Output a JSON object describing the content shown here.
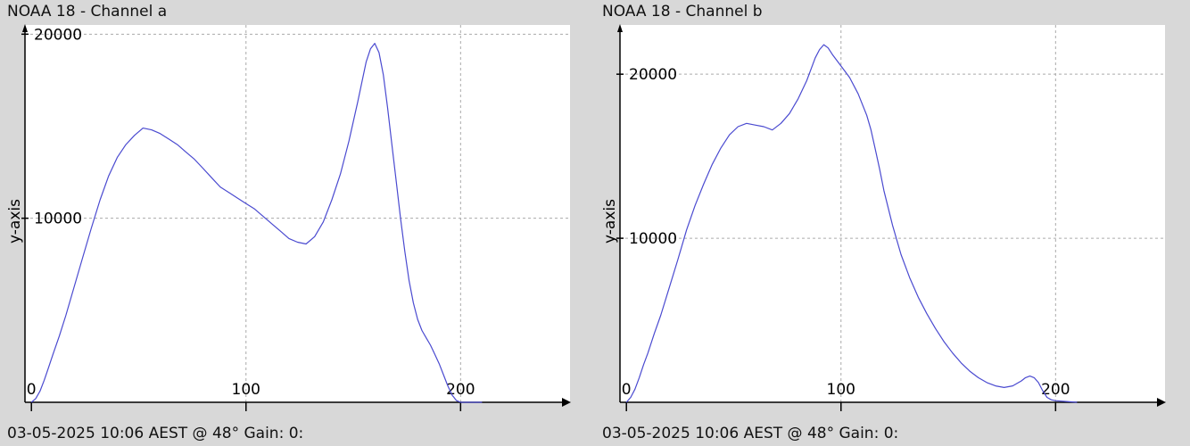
{
  "chart_data": [
    {
      "type": "line",
      "title": "NOAA 18 - Channel a",
      "ylabel": "y-axis",
      "xlabel": "",
      "footer": "03-05-2025 10:06 AEST @ 48° Gain: 0:",
      "xlim": [
        -3,
        251
      ],
      "ylim": [
        0,
        20500
      ],
      "xticks": [
        0,
        100,
        200
      ],
      "yticks": [
        10000,
        20000
      ],
      "grid": true,
      "line_color": "#4a4ad0",
      "series": [
        {
          "x": [
            0,
            2,
            4,
            6,
            8,
            10,
            13,
            16,
            20,
            24,
            28,
            32,
            36,
            40,
            44,
            48,
            52,
            56,
            60,
            64,
            68,
            72,
            76,
            80,
            84,
            88,
            92,
            96,
            100,
            104,
            108,
            112,
            116,
            120,
            124,
            128,
            132,
            136,
            140,
            144,
            148,
            152,
            154,
            156,
            158,
            160,
            162,
            164,
            166,
            168,
            170,
            172,
            174,
            176,
            178,
            180,
            182,
            184,
            186,
            188,
            190,
            192,
            194,
            196,
            198,
            200,
            205,
            210
          ],
          "y": [
            0,
            200,
            600,
            1200,
            1900,
            2600,
            3600,
            4700,
            6300,
            7900,
            9500,
            11000,
            12300,
            13300,
            14000,
            14500,
            14900,
            14800,
            14600,
            14300,
            14000,
            13600,
            13200,
            12700,
            12200,
            11700,
            11400,
            11100,
            10800,
            10500,
            10100,
            9700,
            9300,
            8900,
            8700,
            8600,
            9000,
            9800,
            11000,
            12400,
            14200,
            16300,
            17400,
            18500,
            19200,
            19500,
            19000,
            17800,
            16000,
            14000,
            12000,
            10000,
            8200,
            6600,
            5400,
            4500,
            3900,
            3500,
            3100,
            2600,
            2100,
            1500,
            900,
            400,
            100,
            0,
            0,
            0
          ]
        }
      ]
    },
    {
      "type": "line",
      "title": "NOAA 18 - Channel b",
      "ylabel": "y-axis",
      "xlabel": "",
      "footer": "03-05-2025 10:06 AEST @ 48° Gain: 0:",
      "xlim": [
        -3,
        251
      ],
      "ylim": [
        0,
        23000
      ],
      "xticks": [
        0,
        100,
        200
      ],
      "yticks": [
        10000,
        20000
      ],
      "grid": true,
      "line_color": "#4a4ad0",
      "series": [
        {
          "x": [
            0,
            2,
            4,
            6,
            8,
            10,
            13,
            16,
            20,
            24,
            28,
            32,
            36,
            40,
            44,
            48,
            52,
            56,
            60,
            64,
            68,
            72,
            76,
            80,
            84,
            86,
            88,
            90,
            92,
            94,
            96,
            100,
            104,
            108,
            112,
            114,
            116,
            118,
            120,
            124,
            128,
            132,
            136,
            140,
            144,
            148,
            152,
            156,
            160,
            164,
            168,
            172,
            176,
            180,
            184,
            186,
            188,
            190,
            192,
            194,
            196,
            198,
            200,
            205,
            210
          ],
          "y": [
            0,
            300,
            800,
            1500,
            2300,
            3000,
            4200,
            5300,
            7000,
            8700,
            10500,
            12000,
            13300,
            14500,
            15500,
            16300,
            16800,
            17000,
            16900,
            16800,
            16600,
            17000,
            17600,
            18500,
            19600,
            20300,
            21000,
            21500,
            21800,
            21600,
            21200,
            20500,
            19800,
            18800,
            17500,
            16600,
            15400,
            14200,
            12900,
            10800,
            9000,
            7600,
            6400,
            5400,
            4500,
            3700,
            3000,
            2400,
            1900,
            1500,
            1200,
            1000,
            900,
            1000,
            1300,
            1500,
            1600,
            1500,
            1200,
            700,
            300,
            150,
            100,
            50,
            0
          ]
        }
      ]
    }
  ]
}
